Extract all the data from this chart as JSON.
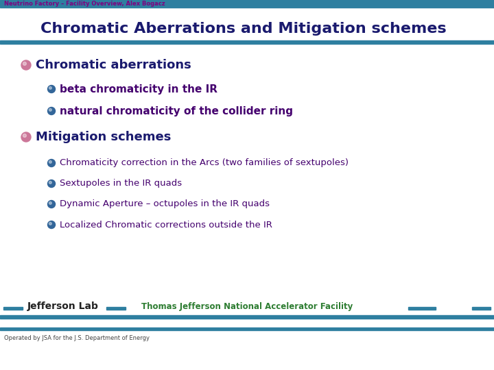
{
  "bg_color": "#ffffff",
  "header_bar_color": "#2e7fa0",
  "header_text": "Neutrino Factory – Facility Overview, Alex Bogacz",
  "header_text_color": "#800080",
  "title": "Chromatic Aberrations and Mitigation schemes",
  "title_color": "#1a1a6e",
  "footer_bar_color": "#2e7fa0",
  "footer_text": "Thomas Jefferson National Accelerator Facility",
  "footer_text_color": "#2e7d32",
  "footer_bottom_text": "Operated by JSA for the J.S. Department of Energy",
  "footer_bottom_color": "#444444",
  "bullet1_text": "Chromatic aberrations",
  "bullet1_color": "#1a1a6e",
  "bullet1_dot_color": "#cc7799",
  "sub_bullet1a": "beta chromaticity in the IR",
  "sub_bullet1b": "natural chromaticity of the collider ring",
  "sub_bullet_color": "#44006e",
  "sub_bullet_dot_color": "#336699",
  "bullet2_text": "Mitigation schemes",
  "bullet2_color": "#1a1a6e",
  "bullet2_dot_color": "#cc7799",
  "sub_bullet2a": "Chromaticity correction in the Arcs (two families of sextupoles)",
  "sub_bullet2b": "Sextupoles in the IR quads",
  "sub_bullet2c": "Dynamic Aperture – octupoles in the IR quads",
  "sub_bullet2d": "Localized Chromatic corrections outside the IR",
  "sub_bullet2_color": "#44006e",
  "sub_bullet2_dot_color": "#336699"
}
